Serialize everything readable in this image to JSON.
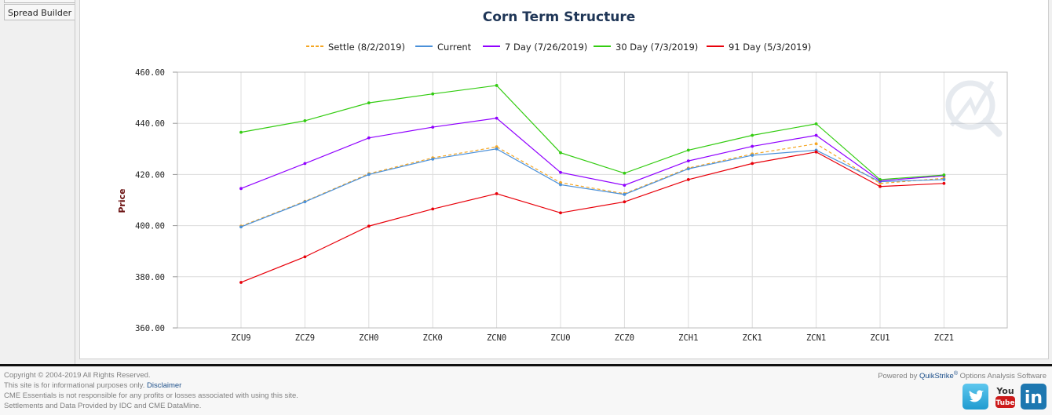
{
  "sidebar": {
    "spread_builder_label": "Spread Builder"
  },
  "chart_data": {
    "type": "line",
    "title": "Corn Term Structure",
    "xlabel": "",
    "ylabel": "Price",
    "ylim": [
      360,
      460
    ],
    "yticks": [
      "460.00",
      "440.00",
      "420.00",
      "400.00",
      "380.00",
      "360.00"
    ],
    "categories": [
      "ZCU9",
      "ZCZ9",
      "ZCH0",
      "ZCK0",
      "ZCN0",
      "ZCU0",
      "ZCZ0",
      "ZCH1",
      "ZCK1",
      "ZCN1",
      "ZCU1",
      "ZCZ1"
    ],
    "grid": true,
    "legend_position": "top",
    "series": [
      {
        "name": "Settle (8/2/2019)",
        "color": "#f5a623",
        "dashed": true,
        "values": [
          399.8,
          409.5,
          420.3,
          426.5,
          430.8,
          416.8,
          412.5,
          422.5,
          428.0,
          432.0,
          416.5,
          418.5
        ]
      },
      {
        "name": "Current",
        "color": "#4a90d9",
        "dashed": false,
        "values": [
          399.5,
          409.3,
          420.0,
          426.0,
          430.0,
          416.0,
          412.2,
          422.2,
          427.5,
          429.5,
          417.2,
          418.0
        ]
      },
      {
        "name": "7 Day (7/26/2019)",
        "color": "#9000ff",
        "dashed": false,
        "values": [
          414.5,
          424.3,
          434.3,
          438.5,
          442.0,
          420.8,
          415.8,
          425.3,
          431.0,
          435.3,
          417.5,
          419.5
        ]
      },
      {
        "name": "30 Day (7/3/2019)",
        "color": "#33cc11",
        "dashed": false,
        "values": [
          436.5,
          441.0,
          448.0,
          451.5,
          454.8,
          428.5,
          420.5,
          429.5,
          435.3,
          439.8,
          418.0,
          419.8
        ]
      },
      {
        "name": "91 Day (5/3/2019)",
        "color": "#e8000a",
        "dashed": false,
        "values": [
          377.8,
          387.8,
          399.8,
          406.5,
          412.5,
          405.0,
          409.3,
          418.0,
          424.3,
          428.8,
          415.3,
          416.5
        ]
      }
    ]
  },
  "footer": {
    "copyright": "Copyright © 2004-2019 All Rights Reserved.",
    "info_text": "This site is for informational purposes only.",
    "disclaimer_link": "Disclaimer",
    "responsibility": "CME Essentials is not responsible for any profits or losses associated with using this site.",
    "data_source": "Settlements and Data Provided by IDC and CME DataMine.",
    "powered_prefix": "Powered by",
    "powered_brand": "QuikStrike",
    "powered_reg": "®",
    "powered_suffix": "Options Analysis Software"
  },
  "social": {
    "twitter": "twitter-icon",
    "youtube": "youtube-icon",
    "youtube_text": "You Tube",
    "linkedin": "linkedin-icon",
    "linkedin_text": "in"
  }
}
